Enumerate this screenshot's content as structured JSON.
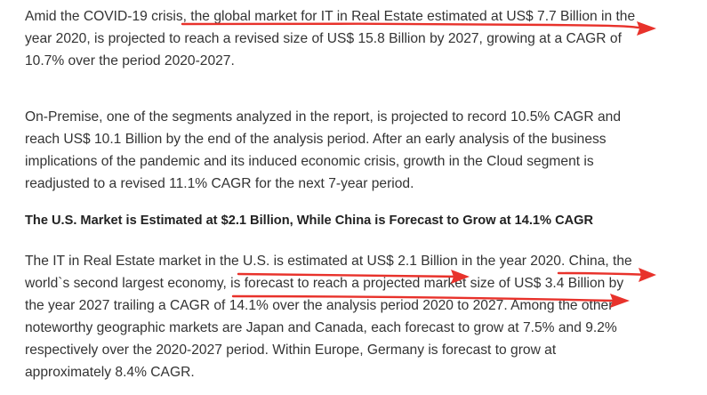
{
  "article": {
    "paragraph_1": {
      "lines": [
        "Amid the COVID-19 crisis, the global market for IT in Real Estate estimated at US$ 7.7 Billion in the",
        "year 2020, is projected to reach a revised size of US$ 15.8 Billion by 2027, growing at a CAGR of",
        "10.7% over the period 2020-2027."
      ]
    },
    "paragraph_2": {
      "lines": [
        "On-Premise, one of the segments analyzed in the report, is projected to record 10.5% CAGR and",
        "reach US$ 10.1 Billion by the end of the analysis period. After an early analysis of the business",
        "implications of the pandemic and its induced economic crisis, growth in the Cloud segment is",
        "readjusted to a revised 11.1% CAGR for the next 7-year period."
      ]
    },
    "heading": "The U.S. Market is Estimated at $2.1 Billion, While China is Forecast to Grow at 14.1% CAGR",
    "paragraph_3": {
      "lines": [
        "The IT in Real Estate market in the U.S. is estimated at US$ 2.1 Billion in the year 2020. China, the",
        "world`s second largest economy, is forecast to reach a projected market size of US$ 3.4 Billion by",
        "the year 2027 trailing a CAGR of 14.1% over the analysis period 2020 to 2027. Among the other",
        "noteworthy geographic markets are Japan and Canada, each forecast to grow at 7.5% and 9.2%",
        "respectively over the 2020-2027 period. Within Europe, Germany is forecast to grow at",
        "approximately 8.4% CAGR."
      ]
    }
  },
  "annotation_color": "#e8322b"
}
